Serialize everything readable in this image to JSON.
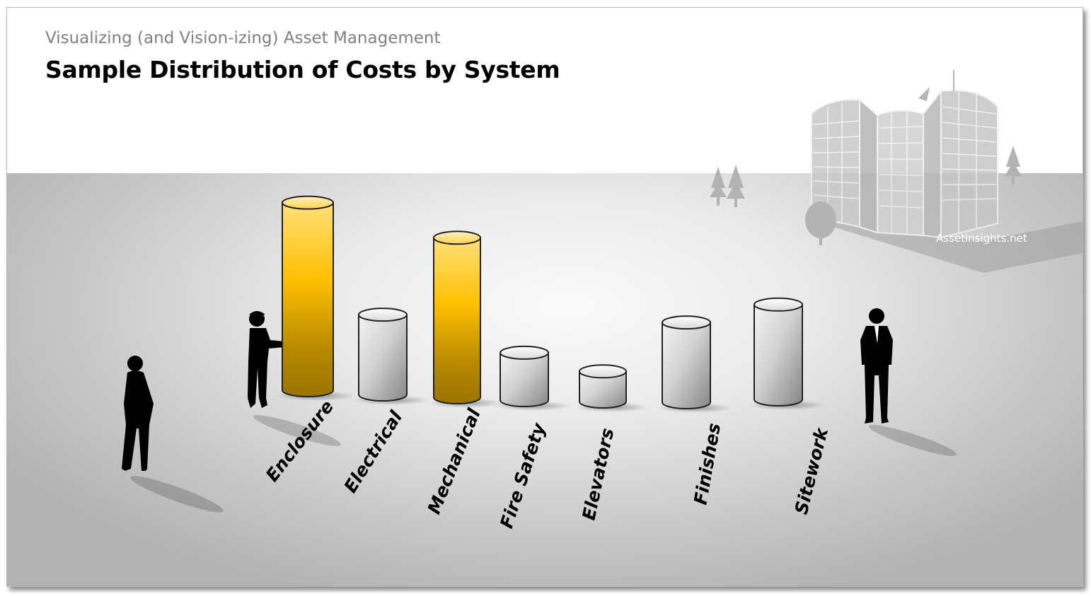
{
  "header": {
    "subtitle": "Visualizing (and Vision-izing) Asset Management",
    "title": "Sample Distribution of Costs by System"
  },
  "watermark": "Assetinsights.net",
  "colors": {
    "highlight_top": "#ffd24d",
    "highlight_mid": "#ffc000",
    "highlight_bottom": "#a07800",
    "gray_light": "#f2f2f2",
    "gray_dark": "#8c8c8c",
    "outline": "#222222"
  },
  "decorations": [
    "building-illustration",
    "tree-icon",
    "person-silhouette-woman",
    "person-silhouette-worker",
    "person-silhouette-businessman"
  ],
  "chart_data": {
    "type": "bar",
    "style": "3d-cylinder",
    "categories": [
      "Enclosure",
      "Electrical",
      "Mechanical",
      "Fire Safety",
      "Elevators",
      "Finishes",
      "Sitework"
    ],
    "values": [
      87,
      37,
      74,
      22,
      14,
      37,
      44
    ],
    "highlighted": [
      "Enclosure",
      "Mechanical"
    ],
    "ylim": [
      0,
      100
    ],
    "axes_visible": false,
    "grid": false,
    "legend": "none"
  }
}
